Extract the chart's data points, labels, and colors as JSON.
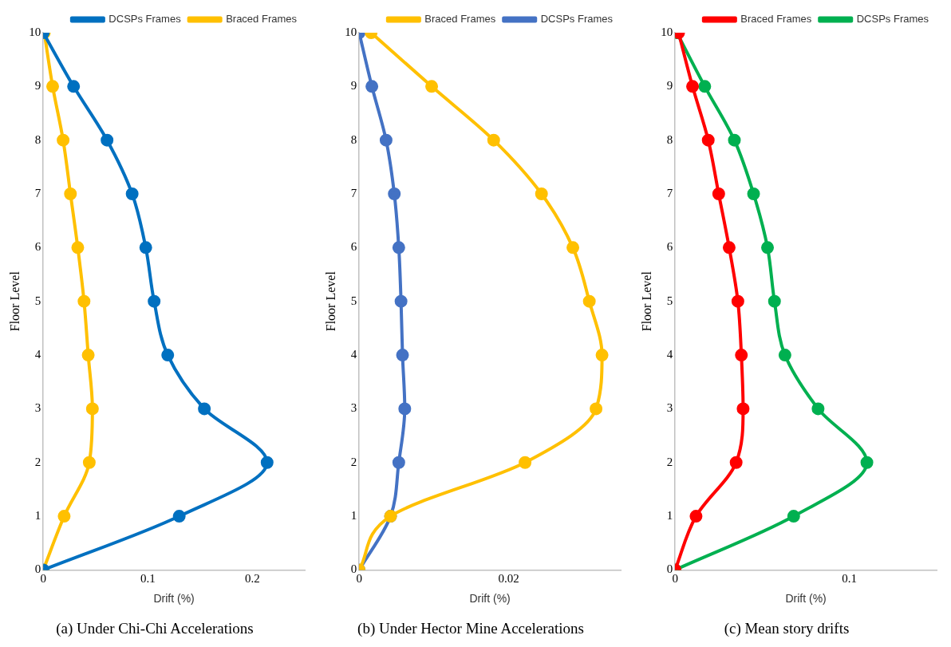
{
  "chart_data": [
    {
      "type": "line",
      "title": "(a) Under Chi-Chi Accelerations",
      "xlabel": "Drift (%)",
      "ylabel": "Floor Level",
      "xlim": [
        0,
        0.25
      ],
      "xticks": [
        0,
        0.1,
        0.2
      ],
      "ylim": [
        0,
        10
      ],
      "yticks": [
        0,
        1,
        2,
        3,
        4,
        5,
        6,
        7,
        8,
        9,
        10
      ],
      "grid": false,
      "legend": "top right",
      "marker": "circle",
      "line_style": "solid",
      "series": [
        {
          "name": "DCSPs Frames",
          "color": "#0070c0",
          "x": [
            0,
            0.13,
            0.214,
            0.154,
            0.119,
            0.106,
            0.098,
            0.085,
            0.061,
            0.029,
            0
          ],
          "values": [
            0,
            1,
            2,
            3,
            4,
            5,
            6,
            7,
            8,
            9,
            10
          ]
        },
        {
          "name": "Braced Frames",
          "color": "#ffc000",
          "x": [
            0,
            0.02,
            0.044,
            0.047,
            0.043,
            0.039,
            0.033,
            0.026,
            0.019,
            0.009,
            0.001
          ],
          "values": [
            0,
            1,
            2,
            3,
            4,
            5,
            6,
            7,
            8,
            9,
            10
          ]
        }
      ]
    },
    {
      "type": "line",
      "title": "(b) Under Hector Mine Accelerations",
      "xlabel": "Drift (%)",
      "ylabel": "Floor Level",
      "xlim": [
        0,
        0.035
      ],
      "xticks": [
        0,
        0.02
      ],
      "ylim": [
        0,
        10
      ],
      "yticks": [
        0,
        1,
        2,
        3,
        4,
        5,
        6,
        7,
        8,
        9,
        10
      ],
      "grid": false,
      "legend": "top right",
      "marker": "circle",
      "line_style": "solid",
      "series": [
        {
          "name": "Braced Frames",
          "color": "#ffc000",
          "x": [
            0,
            0.0042,
            0.0222,
            0.0317,
            0.0325,
            0.0308,
            0.0286,
            0.0244,
            0.018,
            0.0097,
            0.0016
          ],
          "values": [
            0,
            1,
            2,
            3,
            4,
            5,
            6,
            7,
            8,
            9,
            10
          ]
        },
        {
          "name": "DCSPs Frames",
          "color": "#4472c4",
          "x": [
            0,
            0.0042,
            0.0053,
            0.0061,
            0.0058,
            0.0056,
            0.0053,
            0.0047,
            0.0036,
            0.0017,
            0
          ],
          "values": [
            0,
            1,
            2,
            3,
            4,
            5,
            6,
            7,
            8,
            9,
            10
          ]
        }
      ]
    },
    {
      "type": "line",
      "title": "(c) Mean story drifts",
      "xlabel": "Drift (%)",
      "ylabel": "Floor Level",
      "xlim": [
        0,
        0.15
      ],
      "xticks": [
        0,
        0.1
      ],
      "ylim": [
        0,
        10
      ],
      "yticks": [
        0,
        1,
        2,
        3,
        4,
        5,
        6,
        7,
        8,
        9,
        10
      ],
      "grid": false,
      "legend": "top right",
      "marker": "circle",
      "line_style": "solid",
      "series": [
        {
          "name": "Braced Frames",
          "color": "#ff0000",
          "x": [
            0,
            0.012,
            0.035,
            0.039,
            0.038,
            0.036,
            0.031,
            0.025,
            0.019,
            0.01,
            0.002
          ],
          "values": [
            0,
            1,
            2,
            3,
            4,
            5,
            6,
            7,
            8,
            9,
            10
          ]
        },
        {
          "name": "DCSPs Frames",
          "color": "#00b050",
          "x": [
            0,
            0.068,
            0.11,
            0.082,
            0.063,
            0.057,
            0.053,
            0.045,
            0.034,
            0.017,
            0.001
          ],
          "values": [
            0,
            1,
            2,
            3,
            4,
            5,
            6,
            7,
            8,
            9,
            10
          ]
        }
      ]
    }
  ]
}
